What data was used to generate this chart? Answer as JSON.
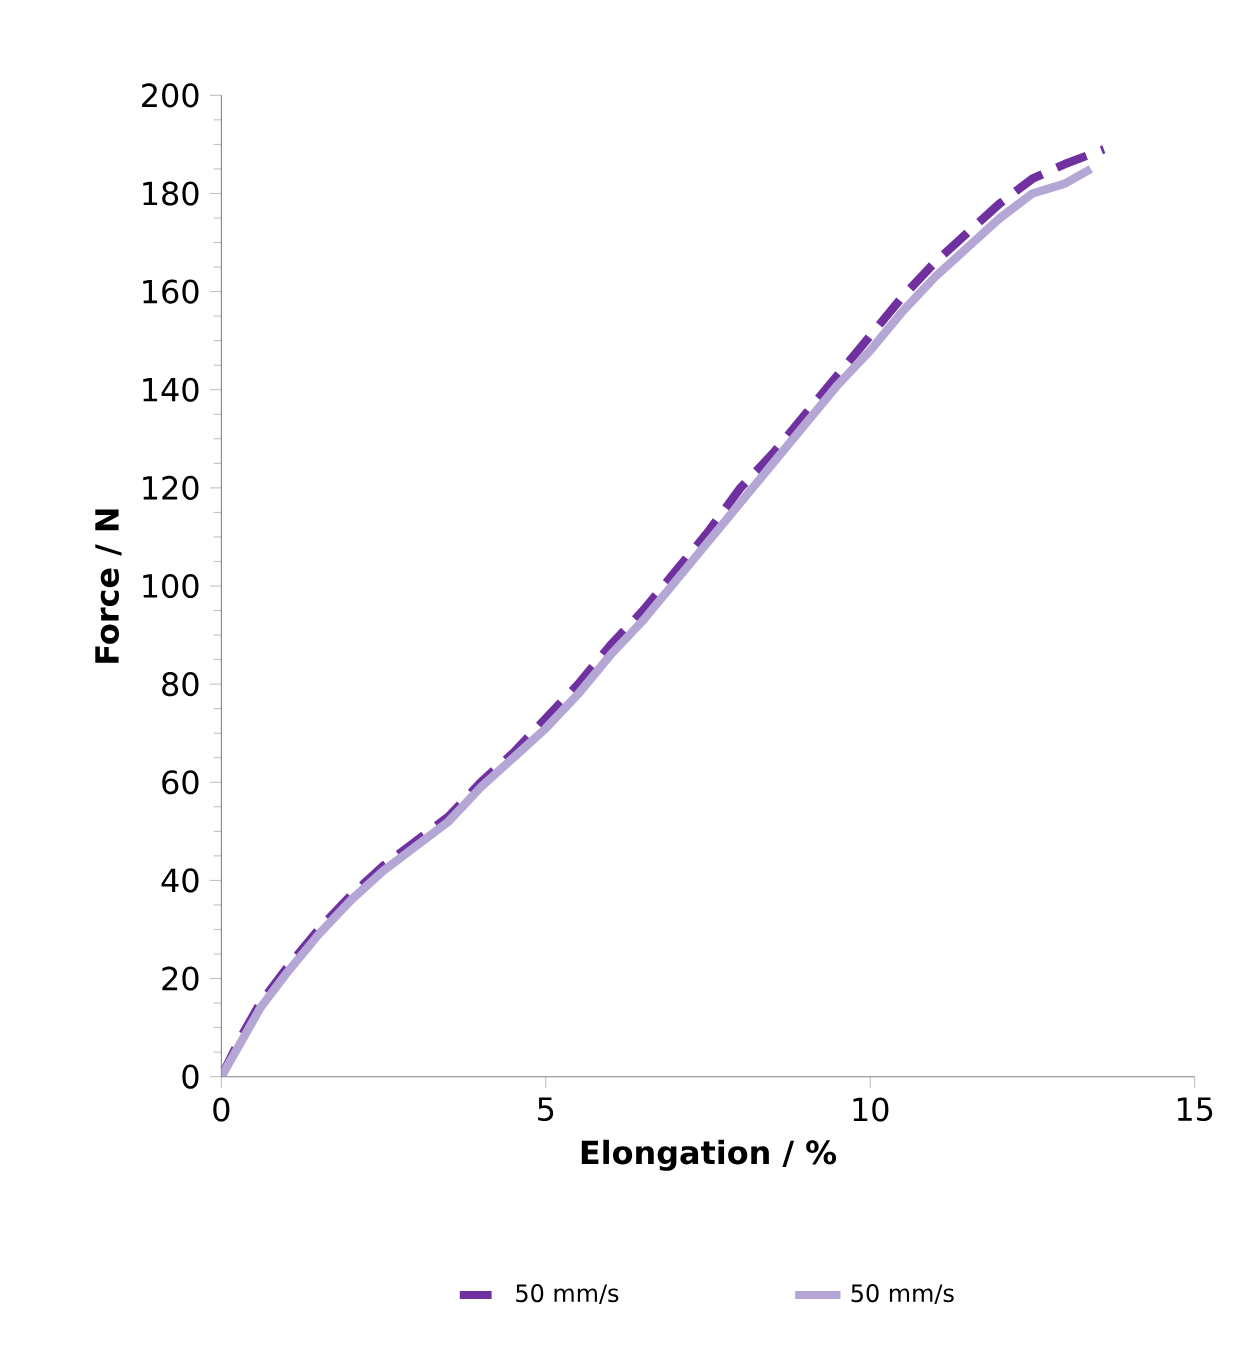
{
  "chart_data": {
    "type": "line",
    "xlabel": "Elongation / %",
    "ylabel": "Force / N",
    "xlim": [
      0,
      15
    ],
    "xticks": [
      0,
      5,
      10,
      15
    ],
    "ylim": [
      0,
      200
    ],
    "yticks": [
      0,
      20,
      40,
      60,
      80,
      100,
      120,
      140,
      160,
      180,
      200
    ],
    "grid": false,
    "legend": "bottom",
    "marker": "none",
    "series": [
      {
        "name": "50 mm/s",
        "color": "#7030a0",
        "line_style": "dashed",
        "x": [
          0,
          0.3,
          0.6,
          1,
          1.5,
          2,
          2.5,
          3,
          3.5,
          4,
          4.5,
          5,
          5.5,
          6,
          6.5,
          7,
          7.5,
          8,
          8.5,
          9,
          9.5,
          10,
          10.5,
          11,
          11.5,
          12,
          12.5,
          13,
          13.6
        ],
        "values": [
          0,
          8,
          15,
          22,
          30,
          37,
          43,
          48,
          53,
          60,
          66,
          73,
          80,
          88,
          95,
          103,
          111,
          120,
          127,
          135,
          143,
          151,
          159,
          166,
          172,
          178,
          183,
          186,
          189
        ]
      },
      {
        "name": "50 mm/s",
        "color": "#b4a7d6",
        "line_style": "solid",
        "x": [
          0,
          0.3,
          0.6,
          1,
          1.5,
          2,
          2.5,
          3,
          3.5,
          4,
          4.5,
          5,
          5.5,
          6,
          6.5,
          7,
          7.5,
          8,
          8.5,
          9,
          9.5,
          10,
          10.5,
          11,
          11.5,
          12,
          12.5,
          13,
          13.4
        ],
        "values": [
          0,
          7,
          14,
          21,
          29,
          36,
          42,
          47,
          52,
          59,
          65,
          71,
          78,
          86,
          93,
          101,
          109,
          117,
          125,
          133,
          141,
          148,
          156,
          163,
          169,
          175,
          180,
          182,
          185
        ]
      }
    ]
  }
}
